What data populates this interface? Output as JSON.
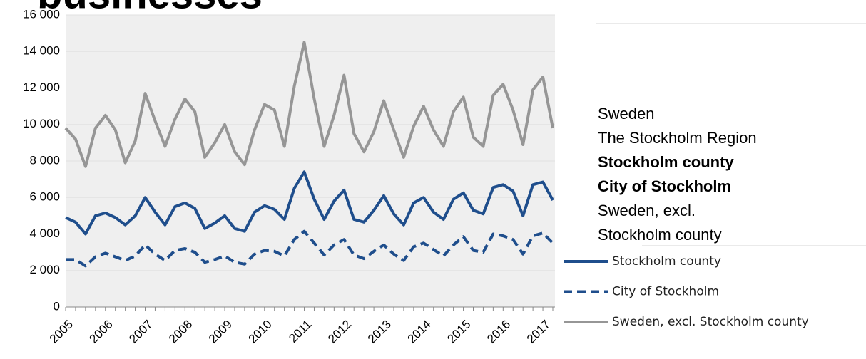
{
  "heading": "businesses",
  "menu": {
    "items": [
      "Sweden",
      "The Stockholm Region",
      "Stockholm county",
      "City of Stockholm",
      "Sweden, excl. Stockholm county"
    ]
  },
  "chart_data": {
    "type": "line",
    "categories": [
      "2005",
      null,
      null,
      null,
      "2006",
      null,
      null,
      null,
      "2007",
      null,
      null,
      null,
      "2008",
      null,
      null,
      null,
      "2009",
      null,
      null,
      null,
      "2010",
      null,
      null,
      null,
      "2011",
      null,
      null,
      null,
      "2012",
      null,
      null,
      null,
      "2013",
      null,
      null,
      null,
      "2014",
      null,
      null,
      null,
      "2015",
      null,
      null,
      null,
      "2016",
      null,
      null,
      null,
      "2017",
      null
    ],
    "series": [
      {
        "name": "Stockholm county",
        "color": "#1f4e8c",
        "dash": false,
        "values": [
          4900,
          4650,
          4000,
          5000,
          5150,
          4900,
          4500,
          5000,
          6000,
          5200,
          4500,
          5500,
          5700,
          5400,
          4300,
          4600,
          5000,
          4300,
          4150,
          5200,
          5550,
          5350,
          4800,
          6500,
          7400,
          5900,
          4800,
          5800,
          6400,
          4800,
          4650,
          5300,
          6100,
          5100,
          4500,
          5700,
          6000,
          5200,
          4800,
          5900,
          6250,
          5300,
          5100,
          6550,
          6700,
          6350,
          5000,
          6700,
          6850,
          5850
        ]
      },
      {
        "name": "City of Stockholm",
        "color": "#1f4e8c",
        "dash": true,
        "values": [
          2600,
          2600,
          2250,
          2750,
          2950,
          2750,
          2550,
          2800,
          3400,
          2900,
          2550,
          3100,
          3200,
          3000,
          2450,
          2600,
          2800,
          2450,
          2350,
          2900,
          3100,
          3050,
          2800,
          3700,
          4150,
          3500,
          2850,
          3400,
          3700,
          2850,
          2650,
          3050,
          3400,
          2900,
          2550,
          3300,
          3500,
          3150,
          2800,
          3400,
          3850,
          3100,
          3000,
          4000,
          3900,
          3700,
          2900,
          3900,
          4050,
          3500
        ]
      },
      {
        "name": "Sweden, excl. Stockholm county",
        "color": "#969696",
        "dash": false,
        "values": [
          9800,
          9200,
          7700,
          9800,
          10500,
          9700,
          7900,
          9100,
          11700,
          10200,
          8800,
          10300,
          11400,
          10700,
          8200,
          9000,
          10000,
          8500,
          7800,
          9700,
          11100,
          10800,
          8800,
          12100,
          14500,
          11400,
          8800,
          10500,
          12700,
          9500,
          8500,
          9600,
          11300,
          9700,
          8200,
          9900,
          11000,
          9700,
          8800,
          10700,
          11500,
          9300,
          8800,
          11600,
          12200,
          10800,
          8900,
          11900,
          12600,
          9800
        ]
      }
    ],
    "ylim": [
      0,
      16000
    ],
    "yticks": [
      0,
      {
        "value": 2000,
        "label": "2 000"
      },
      {
        "value": 4000,
        "label": "4 000"
      },
      {
        "value": 6000,
        "label": "6 000"
      },
      {
        "value": 8000,
        "label": "8 000"
      },
      {
        "value": 10000,
        "label": "10 000"
      },
      {
        "value": 12000,
        "label": "12 000"
      },
      {
        "value": 14000,
        "label": "14 000"
      },
      {
        "value": 16000,
        "label": "16 000"
      }
    ],
    "grid": true
  }
}
